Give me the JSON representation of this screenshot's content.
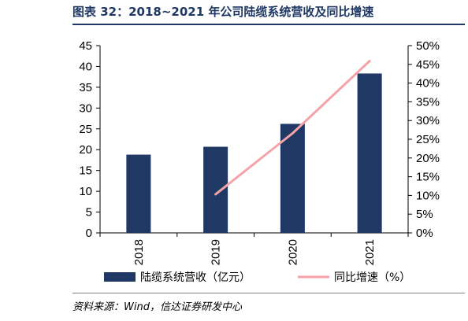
{
  "header": {
    "title": "图表 32：2018~2021 年公司陆缆系统营收及同比增速"
  },
  "footer": {
    "source": "资料来源：Wind，信达证券研发中心"
  },
  "chart_data": {
    "type": "bar",
    "categories": [
      "2018",
      "2019",
      "2020",
      "2021"
    ],
    "series": [
      {
        "name": "陆缆系统营收（亿元）",
        "type": "bar",
        "axis": "left",
        "color": "#1f3864",
        "values": [
          18.8,
          20.7,
          26.2,
          38.3
        ]
      },
      {
        "name": "同比增速（%）",
        "type": "line",
        "axis": "right",
        "color": "#f4a3a8",
        "values": [
          null,
          10.3,
          26.6,
          45.9
        ]
      }
    ],
    "ylim_left": [
      0,
      45
    ],
    "yticks_left": [
      "0",
      "5",
      "10",
      "15",
      "20",
      "25",
      "30",
      "35",
      "40",
      "45"
    ],
    "ylim_right": [
      0,
      50
    ],
    "yticks_right": [
      "0%",
      "5%",
      "10%",
      "15%",
      "20%",
      "25%",
      "30%",
      "35%",
      "40%",
      "45%",
      "50%"
    ],
    "grid": false,
    "legend_position": "bottom"
  }
}
